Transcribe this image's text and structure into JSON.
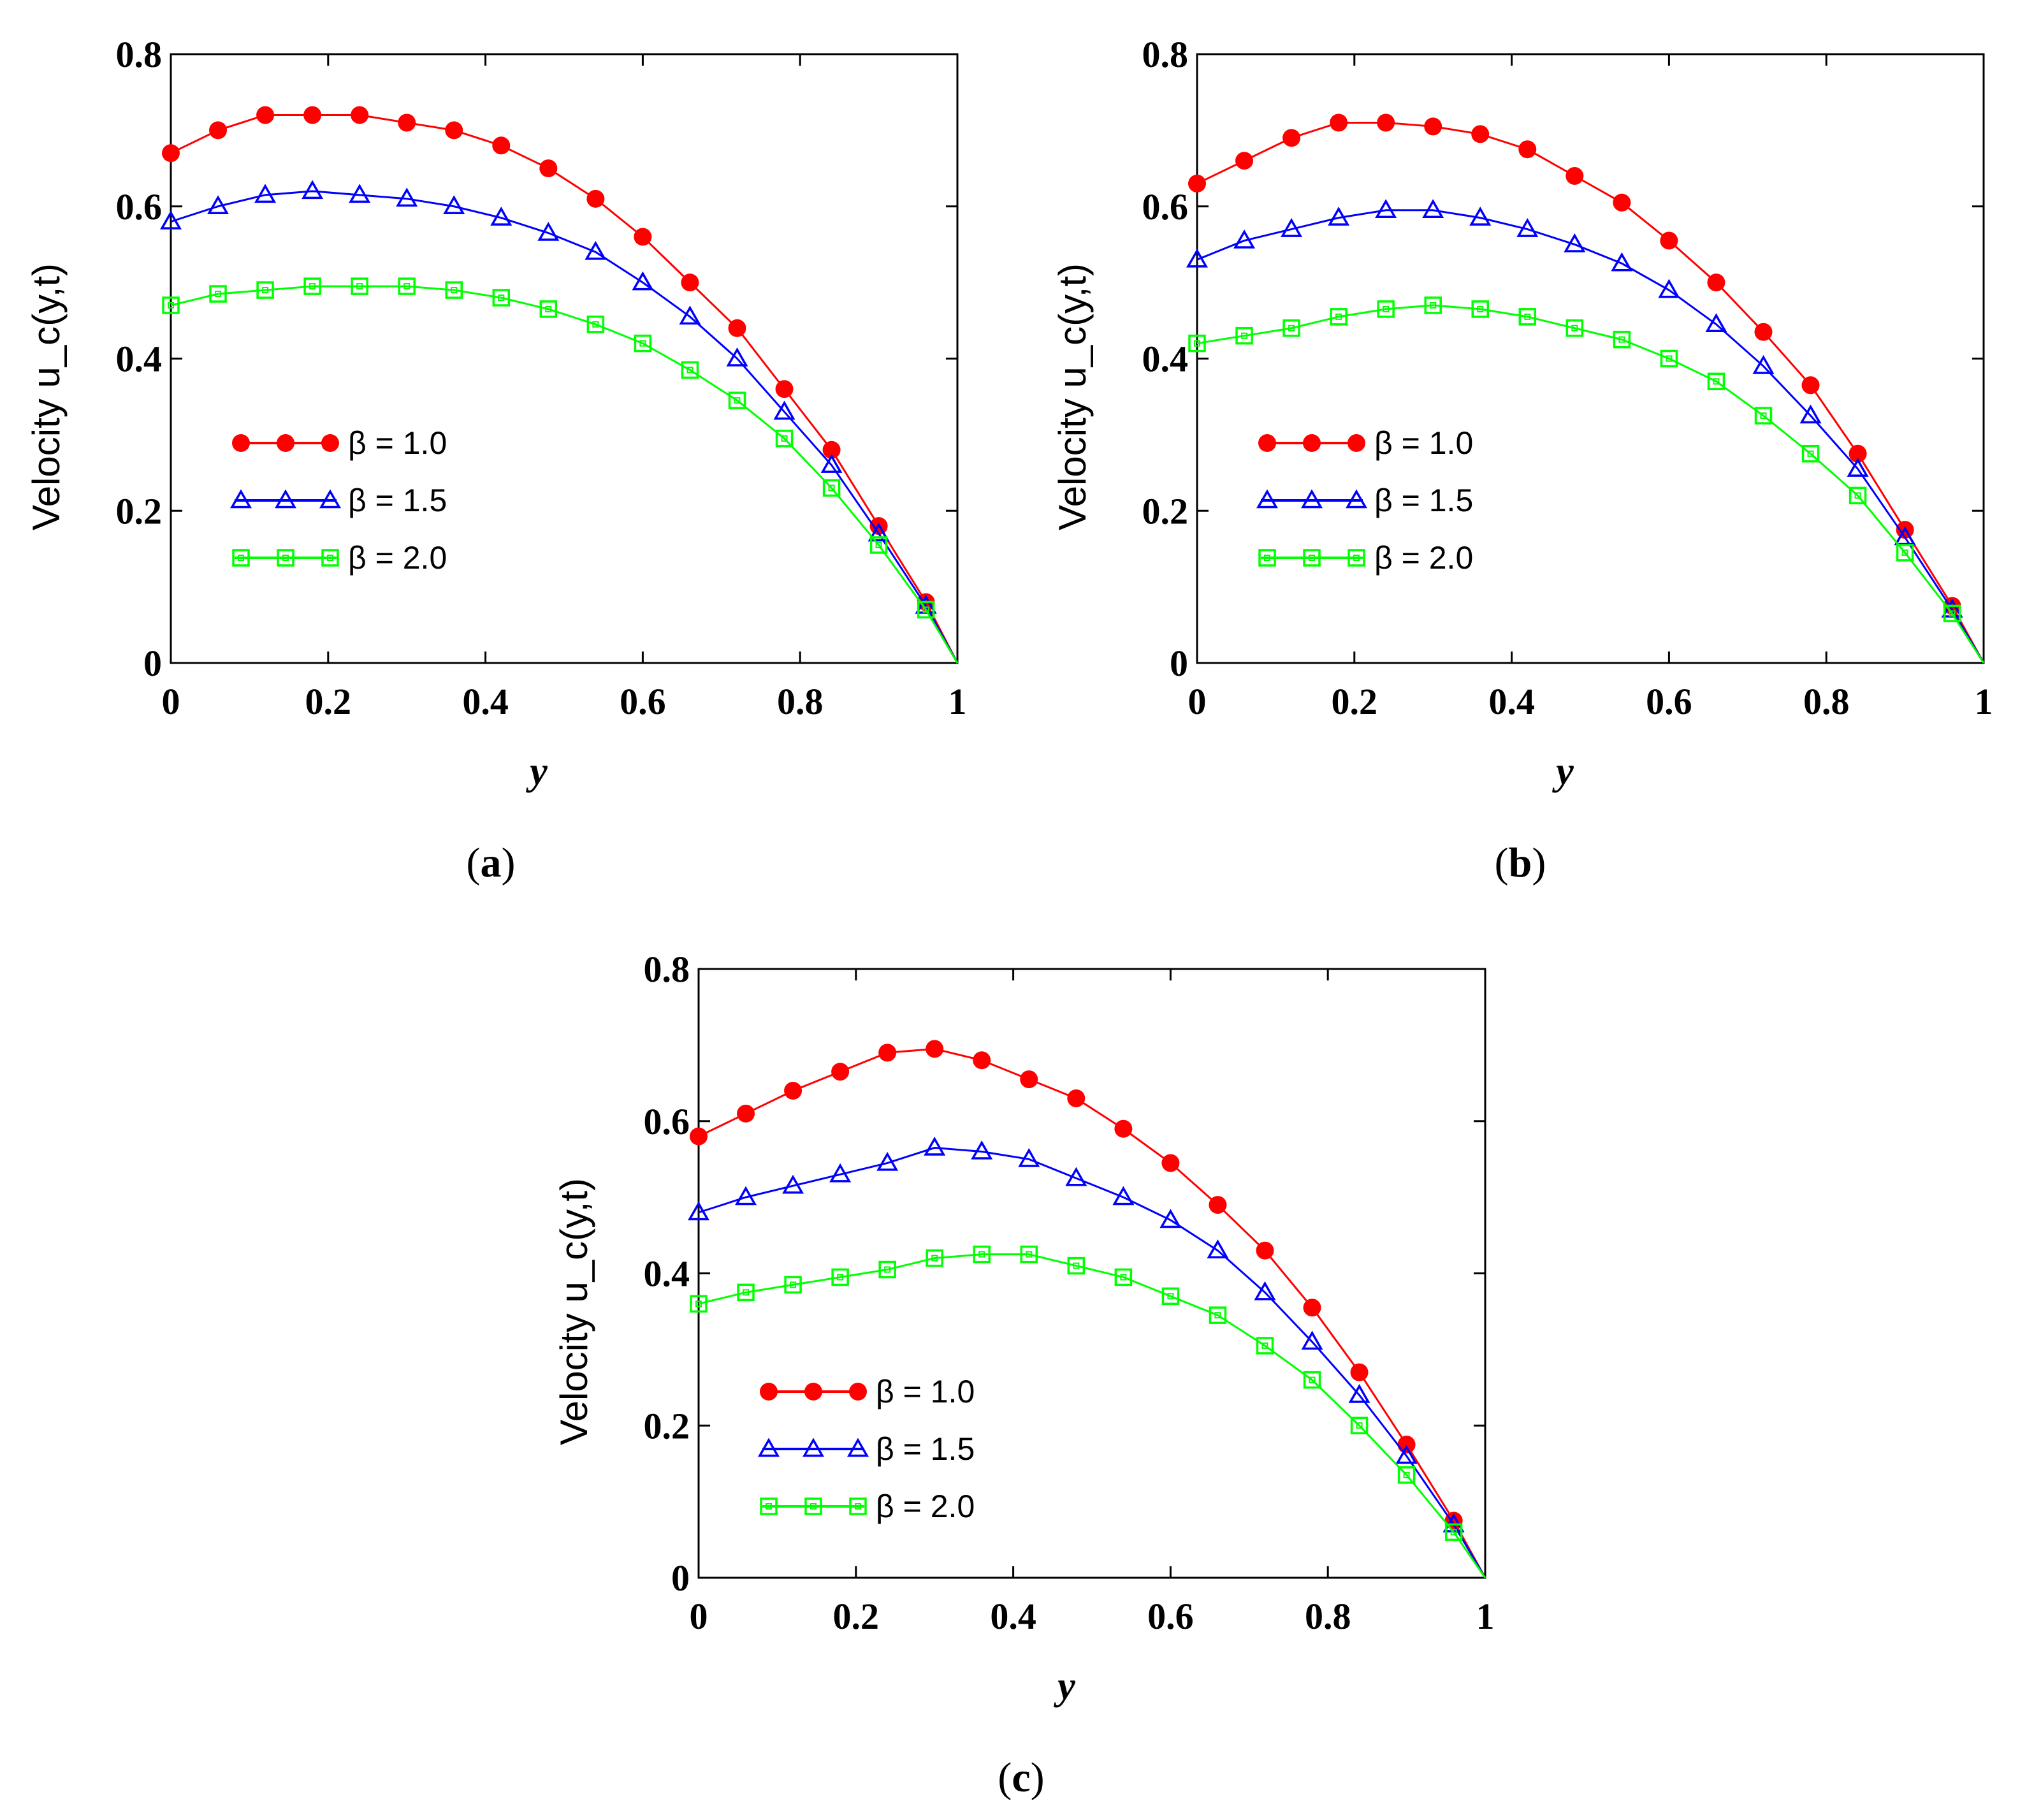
{
  "chart_data": [
    {
      "type": "line",
      "panel_label": "a",
      "xlabel": "y",
      "ylabel": "Velocity u_c(y,t)",
      "xlim": [
        0,
        1
      ],
      "ylim": [
        0,
        0.8
      ],
      "xticks": [
        "0",
        "0.2",
        "0.4",
        "0.6",
        "0.8",
        "1"
      ],
      "yticks": [
        "0",
        "0.2",
        "0.4",
        "0.6",
        "0.8"
      ],
      "legend_position": "lower-left",
      "x": [
        0,
        0.06,
        0.12,
        0.18,
        0.24,
        0.3,
        0.36,
        0.42,
        0.48,
        0.54,
        0.6,
        0.66,
        0.72,
        0.78,
        0.84,
        0.9,
        0.96,
        1.0
      ],
      "series": [
        {
          "name": "β = 1.0",
          "color": "#ff0000",
          "marker": "circle",
          "values": [
            0.67,
            0.7,
            0.72,
            0.72,
            0.72,
            0.71,
            0.7,
            0.68,
            0.65,
            0.61,
            0.56,
            0.5,
            0.44,
            0.36,
            0.28,
            0.18,
            0.08,
            0.0
          ]
        },
        {
          "name": "β = 1.5",
          "color": "#0000ff",
          "marker": "triangle",
          "values": [
            0.58,
            0.6,
            0.615,
            0.62,
            0.615,
            0.61,
            0.6,
            0.585,
            0.565,
            0.54,
            0.5,
            0.455,
            0.4,
            0.33,
            0.26,
            0.17,
            0.075,
            0.0
          ]
        },
        {
          "name": "β = 2.0",
          "color": "#00ff00",
          "marker": "square",
          "values": [
            0.47,
            0.485,
            0.49,
            0.495,
            0.495,
            0.495,
            0.49,
            0.48,
            0.465,
            0.445,
            0.42,
            0.385,
            0.345,
            0.295,
            0.23,
            0.155,
            0.07,
            0.0
          ]
        }
      ]
    },
    {
      "type": "line",
      "panel_label": "b",
      "xlabel": "y",
      "ylabel": "Velocity u_c(y,t)",
      "xlim": [
        0,
        1
      ],
      "ylim": [
        0,
        0.8
      ],
      "xticks": [
        "0",
        "0.2",
        "0.4",
        "0.6",
        "0.8",
        "1"
      ],
      "yticks": [
        "0",
        "0.2",
        "0.4",
        "0.6",
        "0.8"
      ],
      "legend_position": "lower-left",
      "x": [
        0,
        0.06,
        0.12,
        0.18,
        0.24,
        0.3,
        0.36,
        0.42,
        0.48,
        0.54,
        0.6,
        0.66,
        0.72,
        0.78,
        0.84,
        0.9,
        0.96,
        1.0
      ],
      "series": [
        {
          "name": "β = 1.0",
          "color": "#ff0000",
          "marker": "circle",
          "values": [
            0.63,
            0.66,
            0.69,
            0.71,
            0.71,
            0.705,
            0.695,
            0.675,
            0.64,
            0.605,
            0.555,
            0.5,
            0.435,
            0.365,
            0.275,
            0.175,
            0.075,
            0.0
          ]
        },
        {
          "name": "β = 1.5",
          "color": "#0000ff",
          "marker": "triangle",
          "values": [
            0.53,
            0.555,
            0.57,
            0.585,
            0.595,
            0.595,
            0.585,
            0.57,
            0.55,
            0.525,
            0.49,
            0.445,
            0.39,
            0.325,
            0.255,
            0.165,
            0.07,
            0.0
          ]
        },
        {
          "name": "β = 2.0",
          "color": "#00ff00",
          "marker": "square",
          "values": [
            0.42,
            0.43,
            0.44,
            0.455,
            0.465,
            0.47,
            0.465,
            0.455,
            0.44,
            0.425,
            0.4,
            0.37,
            0.325,
            0.275,
            0.22,
            0.145,
            0.065,
            0.0
          ]
        }
      ]
    },
    {
      "type": "line",
      "panel_label": "c",
      "xlabel": "y",
      "ylabel": "Velocity u_c(y,t)",
      "xlim": [
        0,
        1
      ],
      "ylim": [
        0,
        0.8
      ],
      "xticks": [
        "0",
        "0.2",
        "0.4",
        "0.6",
        "0.8",
        "1"
      ],
      "yticks": [
        "0",
        "0.2",
        "0.4",
        "0.6",
        "0.8"
      ],
      "legend_position": "lower-left",
      "x": [
        0,
        0.06,
        0.12,
        0.18,
        0.24,
        0.3,
        0.36,
        0.42,
        0.48,
        0.54,
        0.6,
        0.66,
        0.72,
        0.78,
        0.84,
        0.9,
        0.96,
        1.0
      ],
      "series": [
        {
          "name": "β = 1.0",
          "color": "#ff0000",
          "marker": "circle",
          "values": [
            0.58,
            0.61,
            0.64,
            0.665,
            0.69,
            0.695,
            0.68,
            0.655,
            0.63,
            0.59,
            0.545,
            0.49,
            0.43,
            0.355,
            0.27,
            0.175,
            0.075,
            0.0
          ]
        },
        {
          "name": "β = 1.5",
          "color": "#0000ff",
          "marker": "triangle",
          "values": [
            0.48,
            0.5,
            0.515,
            0.53,
            0.545,
            0.565,
            0.56,
            0.55,
            0.525,
            0.5,
            0.47,
            0.43,
            0.375,
            0.31,
            0.24,
            0.16,
            0.07,
            0.0
          ]
        },
        {
          "name": "β = 2.0",
          "color": "#00ff00",
          "marker": "square",
          "values": [
            0.36,
            0.375,
            0.385,
            0.395,
            0.405,
            0.42,
            0.425,
            0.425,
            0.41,
            0.395,
            0.37,
            0.345,
            0.305,
            0.26,
            0.2,
            0.135,
            0.06,
            0.0
          ]
        }
      ]
    }
  ]
}
